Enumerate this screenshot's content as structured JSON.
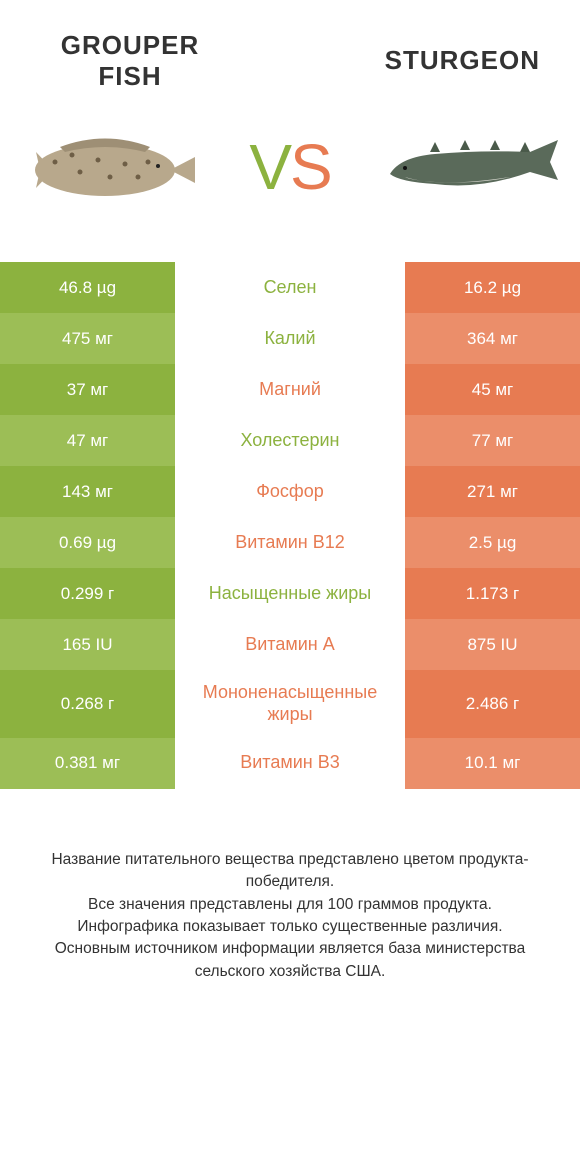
{
  "header": {
    "left_title": "GROUPER FISH",
    "right_title": "STURGEON",
    "vs_v": "V",
    "vs_s": "S"
  },
  "colors": {
    "green_dark": "#8cb23f",
    "green_light": "#9cbe56",
    "orange_dark": "#e77b52",
    "orange_light": "#eb8e6a",
    "text": "#333333",
    "white": "#ffffff"
  },
  "rows": [
    {
      "left": "46.8 µg",
      "mid": "Селен",
      "right": "16.2 µg",
      "winner": "left"
    },
    {
      "left": "475 мг",
      "mid": "Калий",
      "right": "364 мг",
      "winner": "left"
    },
    {
      "left": "37 мг",
      "mid": "Магний",
      "right": "45 мг",
      "winner": "right"
    },
    {
      "left": "47 мг",
      "mid": "Холестерин",
      "right": "77 мг",
      "winner": "left"
    },
    {
      "left": "143 мг",
      "mid": "Фосфор",
      "right": "271 мг",
      "winner": "right"
    },
    {
      "left": "0.69 µg",
      "mid": "Витамин B12",
      "right": "2.5 µg",
      "winner": "right"
    },
    {
      "left": "0.299 г",
      "mid": "Насыщенные жиры",
      "right": "1.173 г",
      "winner": "left"
    },
    {
      "left": "165 IU",
      "mid": "Витамин A",
      "right": "875 IU",
      "winner": "right"
    },
    {
      "left": "0.268 г",
      "mid": "Мононенасыщенные жиры",
      "right": "2.486 г",
      "winner": "right"
    },
    {
      "left": "0.381 мг",
      "mid": "Витамин B3",
      "right": "10.1 мг",
      "winner": "right"
    }
  ],
  "fish_left": {
    "body_color": "#b8a88c",
    "spot_color": "#6e5e46"
  },
  "fish_right": {
    "body_color": "#5a6a5a",
    "belly_color": "#d8d8d0"
  },
  "footer": {
    "line1": "Название питательного вещества представлено цветом продукта-победителя.",
    "line2": "Все значения представлены для 100 граммов продукта.",
    "line3": "Инфографика показывает только существенные различия.",
    "line4": "Основным источником информации является база министерства сельского хозяйства США."
  }
}
